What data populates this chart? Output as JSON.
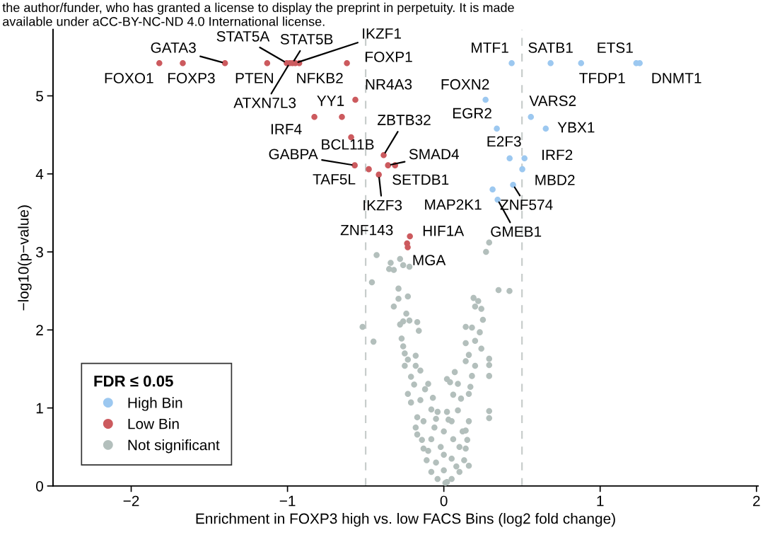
{
  "chart_data": {
    "type": "scatter",
    "xlabel": "Enrichment in FOXP3 high vs. low FACS Bins (log2 fold change)",
    "ylabel": "−log10(p−value)",
    "legend_title": "FDR ≤ 0.05",
    "legend": "bottom left",
    "marker": "circle",
    "grid": false,
    "xlim": [
      -2.5,
      2.01
    ],
    "ylim": [
      0,
      5.85
    ],
    "xticks": [
      {
        "value": -2,
        "label": "−2"
      },
      {
        "value": -1,
        "label": "−1"
      },
      0,
      1,
      2
    ],
    "yticks": [
      0,
      1,
      2,
      3,
      4,
      5
    ],
    "ref_lines": [
      {
        "axis": "x",
        "value": -0.5,
        "color": "#c8cdcc",
        "line_style": "dashed"
      },
      {
        "axis": "x",
        "value": 0.5,
        "color": "#c8cdcc",
        "line_style": "dashed"
      }
    ],
    "series": [
      {
        "name": "High Bin",
        "color": "#9cc8f0",
        "x": [
          0.434,
          0.683,
          0.878,
          1.231,
          1.253,
          0.267,
          0.557,
          0.339,
          0.652,
          0.421,
          0.516,
          0.502,
          0.443,
          0.312,
          0.344
        ],
        "values": [
          5.42,
          5.42,
          5.42,
          5.42,
          5.42,
          4.95,
          4.73,
          4.58,
          4.58,
          4.2,
          4.2,
          4.06,
          3.86,
          3.8,
          3.67
        ]
      },
      {
        "name": "Low Bin",
        "color": "#cc5a5e",
        "x": [
          -1.82,
          -1.67,
          -1.4,
          -1.13,
          -1.005,
          -0.986,
          -0.968,
          -0.95,
          -0.925,
          -0.62,
          -0.566,
          -0.652,
          -0.828,
          -0.593,
          -0.385,
          -0.57,
          -0.48,
          -0.416,
          -0.357,
          -0.312,
          -0.217,
          -0.235,
          -0.231
        ],
        "values": [
          5.42,
          5.42,
          5.42,
          5.42,
          5.42,
          5.42,
          5.42,
          5.42,
          5.42,
          5.42,
          4.95,
          4.73,
          4.73,
          4.47,
          4.24,
          4.11,
          4.06,
          3.99,
          4.11,
          4.11,
          3.2,
          3.11,
          3.06
        ]
      },
      {
        "name": "Not significant",
        "color": "#b3bfbc",
        "x": [
          -0.43,
          -0.28,
          -0.34,
          -0.26,
          -0.35,
          -0.32,
          -0.22,
          -0.46,
          0.29,
          0.27,
          0.35,
          0.42,
          -0.29,
          -0.23,
          -0.29,
          -0.32,
          0.19,
          0.22,
          0.2,
          0.24,
          -0.24,
          0.25,
          -0.26,
          -0.22,
          -0.17,
          -0.52,
          -0.28,
          0.14,
          0.18,
          -0.16,
          0.23,
          -0.45,
          -0.27,
          0.14,
          0.2,
          -0.26,
          -0.25,
          0.24,
          0.16,
          0.29,
          -0.23,
          -0.18,
          -0.25,
          0.29,
          0.14,
          0.2,
          -0.18,
          0.29,
          0.07,
          -0.21,
          -0.15,
          0.18,
          0.02,
          0.04,
          -0.1,
          0.09,
          -0.19,
          0.17,
          -0.12,
          -0.07,
          0.06,
          -0.23,
          -0.21,
          -0.15,
          0.11,
          0.16,
          0.29,
          0.29,
          -0.04,
          0.02,
          -0.17,
          0.09,
          -0.08,
          -0.18,
          -0.17,
          -0.13,
          0.16,
          0.14,
          -0.05,
          0.05,
          -0.14,
          -0.13,
          -0.11,
          -0.08,
          -0.04,
          0.01,
          0.05,
          0.1,
          0.13,
          0.14,
          0.15,
          0.16,
          -0.05,
          0.0,
          0.05,
          -0.02,
          0.06,
          0.0,
          -0.08,
          0.1,
          0.02,
          0.0,
          0.08,
          -0.1,
          0.12,
          -0.06,
          0.03
        ],
        "values": [
          2.96,
          2.91,
          2.86,
          2.83,
          2.78,
          2.77,
          2.81,
          2.61,
          3.12,
          3.0,
          2.51,
          2.5,
          2.53,
          2.43,
          2.4,
          2.3,
          2.41,
          2.37,
          2.3,
          2.27,
          2.21,
          2.13,
          2.11,
          2.12,
          2.1,
          2.04,
          2.07,
          2.04,
          2.03,
          1.99,
          1.97,
          1.85,
          1.89,
          1.83,
          1.86,
          1.79,
          1.7,
          1.76,
          1.68,
          1.63,
          1.62,
          1.67,
          1.54,
          1.55,
          1.6,
          1.54,
          1.54,
          1.41,
          1.46,
          1.4,
          1.48,
          1.41,
          1.37,
          1.33,
          1.31,
          1.31,
          1.3,
          1.27,
          1.24,
          1.13,
          1.17,
          1.18,
          1.07,
          1.1,
          1.12,
          1.18,
          0.96,
          0.87,
          0.95,
          0.95,
          0.88,
          0.97,
          0.98,
          0.75,
          0.66,
          0.83,
          0.83,
          0.71,
          0.86,
          0.83,
          0.59,
          0.48,
          0.33,
          0.18,
          0.09,
          0.04,
          0.09,
          0.18,
          0.33,
          0.48,
          0.59,
          0.26,
          0.3,
          0.2,
          0.35,
          0.5,
          0.6,
          0.7,
          0.6,
          0.5,
          0.05,
          0.4,
          0.25,
          0.45,
          0.7,
          0.75,
          0.85
        ]
      }
    ],
    "annotations": [
      "the author/funder, who has granted a license to display the preprint in perpetuity. It is made",
      "available under aCC-BY-NC-ND 4.0 International license.",
      {
        "text": "FOXO1",
        "x": -1.82,
        "y": 5.42
      },
      {
        "text": "FOXP3",
        "x": -1.67,
        "y": 5.42
      },
      {
        "text": "GATA3",
        "x": -1.4,
        "y": 5.42
      },
      {
        "text": "PTEN",
        "x": -1.13,
        "y": 5.42
      },
      {
        "text": "STAT5A",
        "x": -1.005,
        "y": 5.42
      },
      {
        "text": "ATXN7L3",
        "x": -0.986,
        "y": 5.42
      },
      {
        "text": "STAT5B",
        "x": -0.968,
        "y": 5.42
      },
      {
        "text": "IKZF1",
        "x": -0.95,
        "y": 5.42
      },
      {
        "text": "NFKB2",
        "x": -0.925,
        "y": 5.42
      },
      {
        "text": "FOXP1",
        "x": -0.62,
        "y": 5.42
      },
      {
        "text": "NR4A3",
        "x": -0.566,
        "y": 4.95
      },
      {
        "text": "YY1",
        "x": -0.652,
        "y": 4.73
      },
      {
        "text": "IRF4",
        "x": -0.828,
        "y": 4.73
      },
      {
        "text": "BCL11B",
        "x": -0.593,
        "y": 4.47
      },
      {
        "text": "ZBTB32",
        "x": -0.385,
        "y": 4.24
      },
      {
        "text": "GABPA",
        "x": -0.57,
        "y": 4.11
      },
      {
        "text": "TAF5L",
        "x": -0.48,
        "y": 4.06
      },
      {
        "text": "IKZF3",
        "x": -0.416,
        "y": 3.99
      },
      {
        "text": "SMAD4",
        "x": -0.357,
        "y": 4.11
      },
      {
        "text": "SETDB1",
        "x": -0.312,
        "y": 4.11
      },
      {
        "text": "HIF1A",
        "x": -0.217,
        "y": 3.2
      },
      {
        "text": "ZNF143",
        "x": -0.235,
        "y": 3.11
      },
      {
        "text": "MGA",
        "x": -0.231,
        "y": 3.06
      },
      {
        "text": "MTF1",
        "x": 0.434,
        "y": 5.42
      },
      {
        "text": "SATB1",
        "x": 0.683,
        "y": 5.42
      },
      {
        "text": "TFDP1",
        "x": 0.878,
        "y": 5.42
      },
      {
        "text": "ETS1",
        "x": 1.231,
        "y": 5.42
      },
      {
        "text": "DNMT1",
        "x": 1.253,
        "y": 5.42
      },
      {
        "text": "FOXN2",
        "x": 0.267,
        "y": 4.95
      },
      {
        "text": "VARS2",
        "x": 0.557,
        "y": 4.73
      },
      {
        "text": "EGR2",
        "x": 0.339,
        "y": 4.58
      },
      {
        "text": "YBX1",
        "x": 0.652,
        "y": 4.58
      },
      {
        "text": "E2F3",
        "x": 0.421,
        "y": 4.2
      },
      {
        "text": "IRF2",
        "x": 0.516,
        "y": 4.2
      },
      {
        "text": "MBD2",
        "x": 0.502,
        "y": 4.06
      },
      {
        "text": "ZNF574",
        "x": 0.443,
        "y": 3.86
      },
      {
        "text": "MAP2K1",
        "x": 0.312,
        "y": 3.8
      },
      {
        "text": "GMEB1",
        "x": 0.344,
        "y": 3.67
      }
    ]
  }
}
